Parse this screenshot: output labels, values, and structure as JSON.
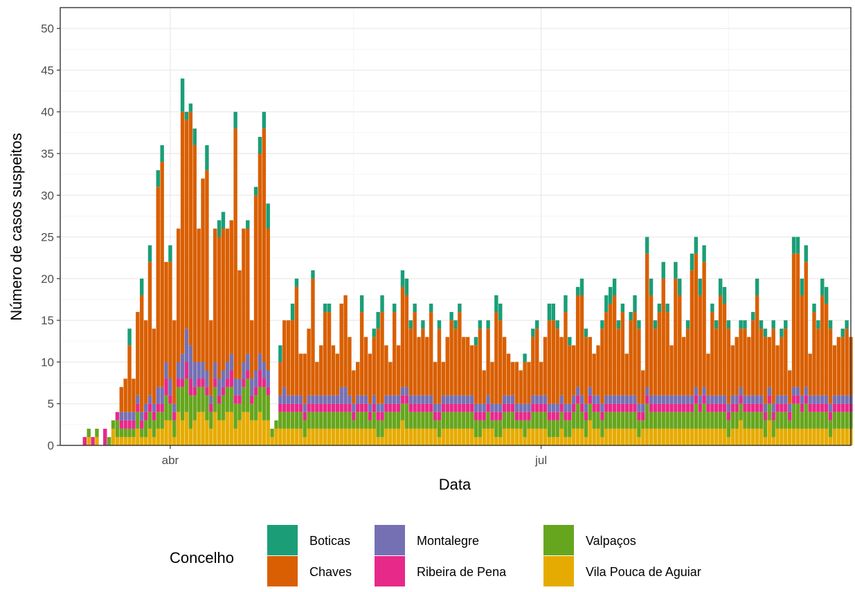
{
  "chart_data": {
    "type": "bar",
    "stacked": true,
    "xlabel": "Data",
    "ylabel": "Número de casos suspeitos",
    "ylim": [
      0,
      52.5
    ],
    "yticks": [
      0,
      5,
      10,
      15,
      20,
      25,
      30,
      35,
      40,
      45,
      50
    ],
    "x_start": "2020-03-08",
    "x_end": "2020-09-12",
    "xlim": [
      "2020-03-05",
      "2020-09-15"
    ],
    "xticks": [
      {
        "date": "2020-04-01",
        "label": "abr"
      },
      {
        "date": "2020-07-01",
        "label": "jul"
      }
    ],
    "x_minor_grid": [
      "2020-05-16",
      "2020-08-16"
    ],
    "grid": true,
    "legend": {
      "title": "Concelho",
      "position": "bottom",
      "items": [
        {
          "name": "Boticas",
          "color": "#1B9E77"
        },
        {
          "name": "Chaves",
          "color": "#D95F02"
        },
        {
          "name": "Montalegre",
          "color": "#7570B3"
        },
        {
          "name": "Ribeira de Pena",
          "color": "#E7298A"
        },
        {
          "name": "Valpaços",
          "color": "#66A61E"
        },
        {
          "name": "Vila Pouca de Aguiar",
          "color": "#E6AB02"
        }
      ]
    },
    "stack_order_bottom_to_top": [
      "Vila Pouca de Aguiar",
      "Valpaços",
      "Ribeira de Pena",
      "Montalegre",
      "Chaves",
      "Boticas"
    ],
    "totals": [
      0,
      0,
      0,
      1,
      2,
      1,
      2,
      0,
      2,
      1,
      3,
      4,
      7,
      8,
      14,
      8,
      16,
      20,
      15,
      24,
      14,
      33,
      36,
      22,
      24,
      15,
      26,
      44,
      40,
      41,
      38,
      26,
      32,
      36,
      15,
      26,
      27,
      28,
      26,
      27,
      40,
      21,
      26,
      27,
      15,
      31,
      37,
      40,
      29,
      2,
      3,
      12,
      15,
      15,
      17,
      20,
      11,
      11,
      14,
      21,
      10,
      12,
      17,
      17,
      12,
      11,
      18,
      18,
      13,
      9,
      10,
      18,
      13,
      11,
      14,
      16,
      18,
      12,
      10,
      17,
      13,
      21,
      20,
      15,
      17,
      13,
      15,
      13,
      17,
      10,
      15,
      10,
      13,
      16,
      15,
      17,
      13,
      13,
      12,
      13,
      15,
      9,
      15,
      10,
      18,
      17,
      13,
      11,
      10,
      10,
      9,
      11,
      10,
      14,
      15,
      10,
      13,
      17,
      17,
      15,
      13,
      18,
      13,
      12,
      19,
      20,
      14,
      13,
      11,
      12,
      15,
      18,
      19,
      20,
      15,
      17,
      11,
      16,
      18,
      15,
      9,
      25,
      20,
      15,
      17,
      22,
      17,
      12,
      22,
      20,
      13,
      15,
      23,
      25,
      20,
      24,
      11,
      17,
      15,
      20,
      19,
      15,
      12,
      13,
      14,
      15,
      13,
      16,
      20,
      15,
      14,
      13,
      15,
      12,
      14,
      15,
      9,
      25,
      25,
      20,
      24,
      11,
      17,
      15,
      20,
      19,
      15,
      12,
      13,
      14,
      15,
      13
    ],
    "series": [
      {
        "name": "Boticas",
        "values": [
          0,
          0,
          0,
          0,
          0,
          0,
          0,
          0,
          0,
          0,
          0,
          0,
          0,
          0,
          2,
          0,
          0,
          2,
          0,
          2,
          0,
          2,
          2,
          0,
          2,
          0,
          0,
          4,
          1,
          1,
          2,
          0,
          0,
          3,
          0,
          0,
          2,
          2,
          0,
          0,
          2,
          0,
          0,
          1,
          0,
          1,
          2,
          2,
          3,
          0,
          0,
          2,
          0,
          0,
          2,
          1,
          0,
          0,
          0,
          1,
          0,
          0,
          1,
          1,
          0,
          0,
          0,
          0,
          0,
          0,
          0,
          2,
          0,
          0,
          1,
          2,
          2,
          0,
          0,
          1,
          0,
          2,
          2,
          1,
          1,
          0,
          1,
          0,
          1,
          0,
          1,
          0,
          0,
          1,
          1,
          1,
          0,
          0,
          0,
          1,
          1,
          0,
          1,
          0,
          2,
          2,
          0,
          0,
          0,
          0,
          0,
          1,
          0,
          1,
          1,
          0,
          0,
          2,
          2,
          1,
          0,
          2,
          1,
          0,
          1,
          2,
          1,
          0,
          0,
          0,
          1,
          2,
          2,
          2,
          1,
          1,
          0,
          1,
          2,
          1,
          0,
          2,
          2,
          1,
          1,
          2,
          1,
          0,
          2,
          2,
          0,
          1,
          2,
          2,
          2,
          2,
          0,
          1,
          1,
          2,
          2,
          1,
          0,
          0,
          1,
          1,
          0,
          1,
          2,
          1,
          1,
          0,
          1,
          0,
          1,
          1,
          0,
          2,
          2,
          2,
          2,
          0,
          1,
          1,
          2,
          2,
          1,
          0,
          0,
          1,
          1,
          0
        ]
      },
      {
        "name": "Chaves",
        "values": [
          0,
          0,
          0,
          0,
          0,
          0,
          0,
          0,
          0,
          0,
          0,
          0,
          3,
          4,
          8,
          4,
          10,
          14,
          10,
          16,
          9,
          24,
          27,
          12,
          14,
          10,
          16,
          29,
          25,
          28,
          26,
          16,
          22,
          24,
          9,
          16,
          17,
          17,
          16,
          16,
          30,
          13,
          16,
          15,
          7,
          21,
          24,
          28,
          17,
          0,
          0,
          4,
          8,
          9,
          9,
          13,
          5,
          6,
          8,
          14,
          4,
          6,
          10,
          10,
          6,
          5,
          10,
          11,
          7,
          4,
          4,
          10,
          7,
          6,
          7,
          9,
          11,
          6,
          4,
          10,
          6,
          12,
          11,
          8,
          10,
          7,
          8,
          7,
          10,
          5,
          9,
          4,
          7,
          9,
          8,
          10,
          7,
          7,
          6,
          7,
          9,
          4,
          8,
          5,
          11,
          10,
          7,
          5,
          4,
          5,
          4,
          5,
          5,
          7,
          8,
          4,
          7,
          10,
          10,
          9,
          7,
          11,
          7,
          6,
          11,
          12,
          8,
          6,
          5,
          6,
          9,
          10,
          11,
          12,
          8,
          10,
          5,
          9,
          10,
          9,
          4,
          16,
          12,
          8,
          10,
          14,
          10,
          6,
          14,
          12,
          7,
          8,
          15,
          16,
          12,
          15,
          5,
          10,
          8,
          12,
          11,
          9,
          6,
          7,
          7,
          8,
          7,
          9,
          12,
          8,
          8,
          6,
          9,
          6,
          7,
          8,
          4,
          16,
          16,
          12,
          15,
          5,
          10,
          8,
          12,
          11,
          9,
          6,
          7,
          7,
          8,
          7
        ]
      },
      {
        "name": "Montalegre",
        "values": [
          0,
          0,
          0,
          0,
          0,
          0,
          0,
          0,
          0,
          0,
          0,
          0,
          1,
          1,
          1,
          1,
          1,
          1,
          1,
          1,
          1,
          2,
          2,
          2,
          2,
          1,
          2,
          3,
          4,
          4,
          3,
          2,
          2,
          2,
          1,
          2,
          2,
          2,
          2,
          2,
          2,
          2,
          2,
          2,
          2,
          2,
          2,
          2,
          2,
          0,
          0,
          1,
          2,
          1,
          1,
          1,
          1,
          1,
          1,
          1,
          1,
          1,
          1,
          1,
          1,
          1,
          2,
          2,
          1,
          1,
          1,
          1,
          1,
          1,
          1,
          1,
          1,
          1,
          1,
          1,
          1,
          1,
          1,
          1,
          1,
          1,
          1,
          1,
          1,
          1,
          1,
          1,
          1,
          1,
          1,
          1,
          1,
          1,
          1,
          1,
          1,
          1,
          1,
          1,
          1,
          1,
          1,
          1,
          1,
          1,
          1,
          1,
          1,
          1,
          1,
          1,
          1,
          1,
          1,
          1,
          1,
          1,
          1,
          1,
          1,
          1,
          1,
          1,
          1,
          1,
          1,
          1,
          1,
          1,
          1,
          1,
          1,
          1,
          1,
          1,
          1,
          1,
          1,
          1,
          1,
          1,
          1,
          1,
          1,
          1,
          1,
          1,
          1,
          1,
          1,
          1,
          1,
          1,
          1,
          1,
          1,
          1,
          1,
          1,
          1,
          1,
          1,
          1,
          1,
          1,
          1,
          1,
          1,
          1,
          1,
          1,
          1,
          1,
          1,
          1,
          1,
          1,
          1,
          1,
          1,
          1,
          1,
          1,
          1,
          1,
          1,
          1
        ]
      },
      {
        "name": "Ribeira de Pena",
        "values": [
          0,
          0,
          0,
          1,
          0,
          1,
          0,
          0,
          2,
          0,
          0,
          1,
          1,
          1,
          1,
          1,
          1,
          1,
          1,
          1,
          1,
          1,
          1,
          2,
          1,
          1,
          1,
          1,
          2,
          2,
          1,
          1,
          1,
          1,
          1,
          1,
          1,
          1,
          1,
          2,
          1,
          1,
          1,
          1,
          1,
          1,
          2,
          1,
          1,
          0,
          0,
          1,
          1,
          1,
          1,
          1,
          1,
          1,
          1,
          1,
          1,
          1,
          1,
          1,
          1,
          1,
          1,
          1,
          1,
          1,
          1,
          1,
          1,
          1,
          1,
          1,
          1,
          1,
          1,
          1,
          1,
          1,
          1,
          1,
          1,
          1,
          1,
          1,
          1,
          1,
          1,
          1,
          1,
          1,
          1,
          1,
          1,
          1,
          1,
          1,
          1,
          1,
          1,
          1,
          1,
          1,
          1,
          1,
          1,
          1,
          1,
          1,
          1,
          1,
          1,
          1,
          1,
          1,
          1,
          1,
          1,
          1,
          1,
          1,
          1,
          1,
          1,
          1,
          1,
          1,
          1,
          1,
          1,
          1,
          1,
          1,
          1,
          1,
          1,
          1,
          1,
          1,
          1,
          1,
          1,
          1,
          1,
          1,
          1,
          1,
          1,
          1,
          1,
          1,
          1,
          1,
          1,
          1,
          1,
          1,
          1,
          1,
          1,
          1,
          1,
          1,
          1,
          1,
          1,
          1,
          1,
          1,
          1,
          1,
          1,
          1,
          1,
          1,
          1,
          1,
          1,
          1,
          1,
          1,
          1,
          1,
          1,
          1,
          1,
          1,
          1,
          1
        ]
      },
      {
        "name": "Valpaços",
        "values": [
          0,
          0,
          0,
          0,
          1,
          0,
          1,
          0,
          0,
          1,
          1,
          2,
          1,
          1,
          1,
          1,
          2,
          1,
          2,
          2,
          2,
          2,
          2,
          3,
          2,
          2,
          3,
          4,
          4,
          4,
          3,
          3,
          3,
          3,
          2,
          3,
          2,
          3,
          3,
          3,
          3,
          2,
          3,
          4,
          2,
          3,
          3,
          4,
          3,
          1,
          1,
          2,
          2,
          2,
          2,
          2,
          2,
          2,
          2,
          2,
          2,
          2,
          2,
          2,
          2,
          2,
          2,
          2,
          2,
          1,
          2,
          2,
          2,
          1,
          2,
          2,
          2,
          2,
          2,
          2,
          2,
          2,
          3,
          2,
          2,
          2,
          2,
          2,
          2,
          1,
          2,
          2,
          2,
          2,
          2,
          2,
          2,
          2,
          2,
          2,
          2,
          1,
          2,
          1,
          2,
          2,
          2,
          2,
          2,
          1,
          1,
          2,
          1,
          2,
          2,
          2,
          2,
          2,
          2,
          2,
          2,
          2,
          2,
          2,
          3,
          2,
          2,
          2,
          2,
          2,
          2,
          2,
          2,
          2,
          2,
          2,
          2,
          2,
          2,
          2,
          1,
          3,
          2,
          2,
          2,
          2,
          2,
          2,
          2,
          2,
          2,
          2,
          2,
          3,
          2,
          3,
          2,
          2,
          2,
          2,
          2,
          2,
          2,
          2,
          2,
          2,
          2,
          2,
          2,
          2,
          2,
          2,
          2,
          2,
          2,
          2,
          1,
          3,
          3,
          2,
          3,
          2,
          2,
          2,
          2,
          2,
          2,
          2,
          2,
          2,
          2,
          2
        ]
      },
      {
        "name": "Vila Pouca de Aguiar",
        "values": [
          0,
          0,
          0,
          0,
          1,
          0,
          1,
          0,
          0,
          0,
          2,
          1,
          1,
          1,
          1,
          1,
          2,
          1,
          1,
          2,
          1,
          2,
          2,
          3,
          3,
          1,
          4,
          3,
          4,
          2,
          3,
          4,
          4,
          3,
          2,
          4,
          3,
          3,
          4,
          4,
          2,
          3,
          4,
          4,
          3,
          3,
          4,
          3,
          3,
          1,
          2,
          2,
          2,
          2,
          2,
          2,
          2,
          1,
          2,
          2,
          2,
          2,
          2,
          2,
          2,
          2,
          2,
          2,
          2,
          2,
          2,
          2,
          2,
          2,
          2,
          1,
          1,
          2,
          2,
          2,
          2,
          3,
          2,
          2,
          2,
          2,
          2,
          2,
          2,
          2,
          1,
          2,
          2,
          2,
          2,
          2,
          2,
          2,
          2,
          1,
          1,
          2,
          2,
          2,
          1,
          1,
          2,
          2,
          2,
          2,
          2,
          1,
          2,
          2,
          2,
          2,
          2,
          1,
          1,
          1,
          2,
          1,
          1,
          2,
          2,
          2,
          1,
          3,
          2,
          2,
          1,
          2,
          2,
          2,
          2,
          2,
          2,
          2,
          2,
          1,
          2,
          2,
          2,
          2,
          2,
          2,
          2,
          2,
          2,
          2,
          2,
          2,
          2,
          2,
          2,
          2,
          2,
          2,
          2,
          2,
          2,
          1,
          2,
          2,
          3,
          2,
          2,
          2,
          2,
          2,
          1,
          3,
          1,
          2,
          2,
          2,
          2,
          2,
          2,
          2,
          2,
          2,
          2,
          2,
          2,
          2,
          1,
          2,
          2,
          2,
          2,
          2
        ]
      }
    ]
  }
}
